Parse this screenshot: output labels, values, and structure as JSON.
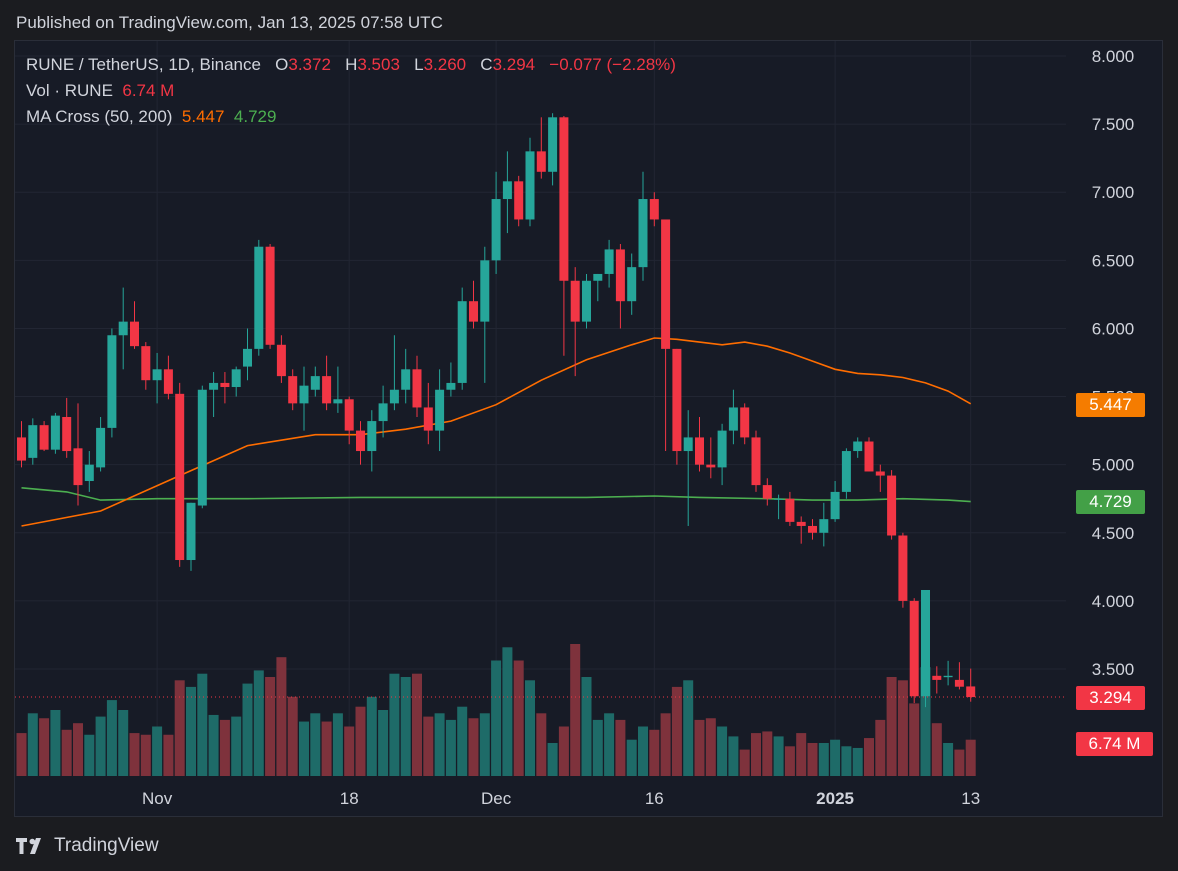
{
  "header": {
    "published": "Published on TradingView.com, Jan 13, 2025 07:58 UTC"
  },
  "legend": {
    "symbol": "RUNE / TetherUS, 1D, Binance",
    "o_label": "O",
    "o_value": "3.372",
    "h_label": "H",
    "h_value": "3.503",
    "l_label": "L",
    "l_value": "3.260",
    "c_label": "C",
    "c_value": "3.294",
    "change": "−0.077 (−2.28%)",
    "vol_label": "Vol · RUNE",
    "vol_value": "6.74 M",
    "ma_label": "MA Cross (50, 200)",
    "ma50_value": "5.447",
    "ma200_value": "4.729"
  },
  "badges": {
    "ma50": "5.447",
    "ma200": "4.729",
    "price": "3.294",
    "volume": "6.74 M"
  },
  "footer": {
    "brand": "TradingView"
  },
  "colors": {
    "up": "#26a69a",
    "down": "#f23645",
    "vol_up": "#1e6b68",
    "vol_down": "#7e323c",
    "ma50": "#ff6d00",
    "ma200": "#4caf50"
  },
  "chart_data": {
    "type": "candlestick",
    "symbol": "RUNE / TetherUS",
    "interval": "1D",
    "exchange": "Binance",
    "y_axis": {
      "min": 3.0,
      "max": 8.1,
      "ticks": [
        "8.000",
        "7.500",
        "7.000",
        "6.500",
        "6.000",
        "5.500",
        "5.000",
        "4.500",
        "4.000",
        "3.500"
      ]
    },
    "x_axis": {
      "labels": [
        {
          "text": "Nov",
          "index": 12
        },
        {
          "text": "18",
          "index": 29
        },
        {
          "text": "Dec",
          "index": 42
        },
        {
          "text": "16",
          "index": 56
        },
        {
          "text": "2025",
          "index": 72,
          "bold": true
        },
        {
          "text": "13",
          "index": 84
        }
      ]
    },
    "ohlc": [
      [
        5.2,
        5.32,
        4.98,
        5.03
      ],
      [
        5.05,
        5.34,
        5.0,
        5.29
      ],
      [
        5.29,
        5.32,
        5.1,
        5.11
      ],
      [
        5.11,
        5.38,
        5.08,
        5.36
      ],
      [
        5.35,
        5.49,
        5.05,
        5.1
      ],
      [
        5.12,
        5.45,
        4.7,
        4.85
      ],
      [
        4.88,
        5.1,
        4.8,
        5.0
      ],
      [
        4.98,
        5.35,
        4.95,
        5.27
      ],
      [
        5.27,
        6.0,
        5.2,
        5.95
      ],
      [
        5.95,
        6.3,
        5.7,
        6.05
      ],
      [
        6.05,
        6.2,
        5.85,
        5.87
      ],
      [
        5.87,
        5.9,
        5.55,
        5.62
      ],
      [
        5.62,
        5.82,
        5.45,
        5.7
      ],
      [
        5.7,
        5.8,
        5.48,
        5.52
      ],
      [
        5.52,
        5.6,
        4.25,
        4.3
      ],
      [
        4.3,
        4.72,
        4.22,
        4.72
      ],
      [
        4.7,
        5.58,
        4.68,
        5.55
      ],
      [
        5.55,
        5.68,
        5.35,
        5.6
      ],
      [
        5.6,
        5.68,
        5.45,
        5.57
      ],
      [
        5.57,
        5.72,
        5.5,
        5.7
      ],
      [
        5.72,
        6.0,
        5.62,
        5.85
      ],
      [
        5.85,
        6.65,
        5.8,
        6.6
      ],
      [
        6.6,
        6.62,
        5.85,
        5.88
      ],
      [
        5.88,
        5.95,
        5.6,
        5.65
      ],
      [
        5.65,
        5.7,
        5.4,
        5.45
      ],
      [
        5.45,
        5.72,
        5.25,
        5.58
      ],
      [
        5.55,
        5.72,
        5.5,
        5.65
      ],
      [
        5.65,
        5.8,
        5.4,
        5.45
      ],
      [
        5.45,
        5.72,
        5.38,
        5.48
      ],
      [
        5.48,
        5.5,
        5.15,
        5.25
      ],
      [
        5.25,
        5.32,
        5.0,
        5.1
      ],
      [
        5.1,
        5.4,
        4.95,
        5.32
      ],
      [
        5.32,
        5.58,
        5.2,
        5.45
      ],
      [
        5.45,
        5.95,
        5.4,
        5.55
      ],
      [
        5.55,
        5.85,
        5.45,
        5.7
      ],
      [
        5.7,
        5.8,
        5.35,
        5.42
      ],
      [
        5.42,
        5.6,
        5.15,
        5.25
      ],
      [
        5.25,
        5.7,
        5.1,
        5.55
      ],
      [
        5.55,
        5.75,
        5.5,
        5.6
      ],
      [
        5.6,
        6.3,
        5.55,
        6.2
      ],
      [
        6.2,
        6.35,
        6.0,
        6.05
      ],
      [
        6.05,
        6.6,
        5.6,
        6.5
      ],
      [
        6.5,
        7.15,
        6.4,
        6.95
      ],
      [
        6.95,
        7.3,
        6.7,
        7.08
      ],
      [
        7.08,
        7.12,
        6.75,
        6.8
      ],
      [
        6.8,
        7.4,
        6.75,
        7.3
      ],
      [
        7.3,
        7.55,
        7.1,
        7.15
      ],
      [
        7.15,
        7.58,
        7.05,
        7.55
      ],
      [
        7.55,
        7.56,
        5.8,
        6.35
      ],
      [
        6.35,
        6.45,
        5.65,
        6.05
      ],
      [
        6.05,
        6.4,
        6.0,
        6.35
      ],
      [
        6.35,
        6.4,
        6.2,
        6.4
      ],
      [
        6.4,
        6.65,
        6.3,
        6.58
      ],
      [
        6.58,
        6.62,
        6.0,
        6.2
      ],
      [
        6.2,
        6.55,
        6.1,
        6.45
      ],
      [
        6.45,
        7.15,
        6.35,
        6.95
      ],
      [
        6.95,
        7.0,
        6.75,
        6.8
      ],
      [
        6.8,
        6.8,
        5.1,
        5.85
      ],
      [
        5.85,
        5.85,
        5.0,
        5.1
      ],
      [
        5.1,
        5.4,
        4.55,
        5.2
      ],
      [
        5.2,
        5.35,
        4.95,
        5.0
      ],
      [
        5.0,
        5.2,
        4.9,
        4.98
      ],
      [
        4.98,
        5.3,
        4.85,
        5.25
      ],
      [
        5.25,
        5.55,
        5.15,
        5.42
      ],
      [
        5.42,
        5.45,
        5.15,
        5.2
      ],
      [
        5.2,
        5.25,
        4.8,
        4.85
      ],
      [
        4.85,
        4.9,
        4.7,
        4.75
      ],
      [
        4.75,
        4.78,
        4.6,
        4.75
      ],
      [
        4.75,
        4.8,
        4.55,
        4.58
      ],
      [
        4.58,
        4.62,
        4.42,
        4.55
      ],
      [
        4.55,
        4.6,
        4.45,
        4.5
      ],
      [
        4.5,
        4.72,
        4.4,
        4.6
      ],
      [
        4.6,
        4.88,
        4.58,
        4.8
      ],
      [
        4.8,
        5.12,
        4.75,
        5.1
      ],
      [
        5.1,
        5.2,
        5.05,
        5.17
      ],
      [
        5.17,
        5.2,
        4.95,
        4.95
      ],
      [
        4.95,
        5.0,
        4.8,
        4.92
      ],
      [
        4.92,
        4.96,
        4.45,
        4.48
      ],
      [
        4.48,
        4.5,
        3.95,
        4.0
      ],
      [
        4.0,
        4.02,
        3.25,
        3.3
      ],
      [
        3.3,
        4.08,
        3.22,
        4.08
      ],
      [
        3.45,
        3.52,
        3.32,
        3.42
      ],
      [
        3.44,
        3.56,
        3.38,
        3.45
      ],
      [
        3.42,
        3.55,
        3.35,
        3.37
      ],
      [
        3.372,
        3.503,
        3.26,
        3.294
      ]
    ],
    "volume_rel": [
      0.26,
      0.38,
      0.35,
      0.4,
      0.28,
      0.32,
      0.25,
      0.36,
      0.46,
      0.4,
      0.26,
      0.25,
      0.3,
      0.25,
      0.58,
      0.54,
      0.62,
      0.37,
      0.34,
      0.36,
      0.56,
      0.64,
      0.6,
      0.72,
      0.48,
      0.33,
      0.38,
      0.33,
      0.38,
      0.3,
      0.42,
      0.48,
      0.4,
      0.62,
      0.6,
      0.62,
      0.36,
      0.38,
      0.34,
      0.42,
      0.35,
      0.38,
      0.7,
      0.78,
      0.7,
      0.58,
      0.38,
      0.2,
      0.3,
      0.8,
      0.6,
      0.34,
      0.38,
      0.34,
      0.22,
      0.3,
      0.28,
      0.38,
      0.54,
      0.58,
      0.34,
      0.35,
      0.3,
      0.24,
      0.16,
      0.26,
      0.27,
      0.24,
      0.18,
      0.26,
      0.2,
      0.2,
      0.22,
      0.18,
      0.17,
      0.23,
      0.34,
      0.6,
      0.58,
      0.44,
      0.66,
      0.32,
      0.2,
      0.16,
      0.22
    ],
    "ma50": [
      [
        0,
        4.55
      ],
      [
        7,
        4.66
      ],
      [
        14,
        4.92
      ],
      [
        20,
        5.14
      ],
      [
        26,
        5.22
      ],
      [
        30,
        5.22
      ],
      [
        34,
        5.26
      ],
      [
        38,
        5.32
      ],
      [
        42,
        5.44
      ],
      [
        46,
        5.62
      ],
      [
        50,
        5.77
      ],
      [
        54,
        5.88
      ],
      [
        56,
        5.93
      ],
      [
        58,
        5.92
      ],
      [
        60,
        5.9
      ],
      [
        62,
        5.88
      ],
      [
        64,
        5.9
      ],
      [
        66,
        5.87
      ],
      [
        68,
        5.82
      ],
      [
        70,
        5.76
      ],
      [
        72,
        5.7
      ],
      [
        74,
        5.67
      ],
      [
        76,
        5.66
      ],
      [
        78,
        5.64
      ],
      [
        80,
        5.6
      ],
      [
        82,
        5.54
      ],
      [
        84,
        5.447
      ]
    ],
    "ma200": [
      [
        0,
        4.83
      ],
      [
        4,
        4.8
      ],
      [
        7,
        4.74
      ],
      [
        12,
        4.75
      ],
      [
        20,
        4.75
      ],
      [
        30,
        4.76
      ],
      [
        40,
        4.76
      ],
      [
        50,
        4.76
      ],
      [
        56,
        4.77
      ],
      [
        60,
        4.76
      ],
      [
        66,
        4.75
      ],
      [
        70,
        4.74
      ],
      [
        74,
        4.74
      ],
      [
        78,
        4.75
      ],
      [
        82,
        4.74
      ],
      [
        84,
        4.729
      ]
    ]
  }
}
